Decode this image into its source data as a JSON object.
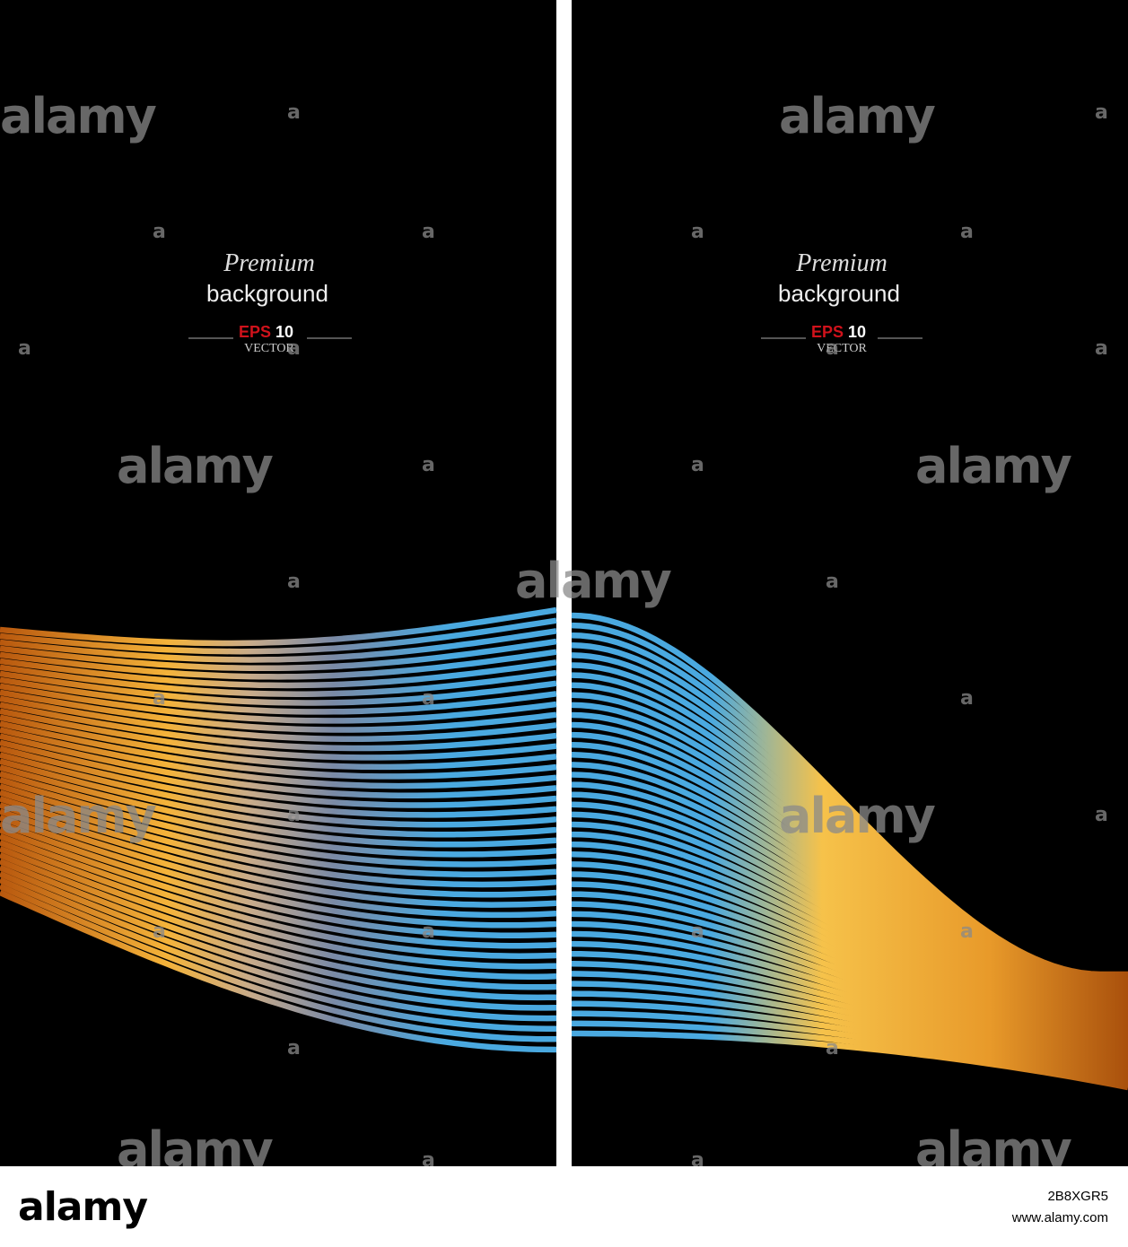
{
  "panels": [
    {
      "premium": "Premium",
      "background": "background",
      "eps": "EPS",
      "ten": "10",
      "vector": "VECTOR"
    },
    {
      "premium": "Premium",
      "background": "background",
      "eps": "EPS",
      "ten": "10",
      "vector": "VECTOR"
    }
  ],
  "watermark": "alamy",
  "watermark_small": "a",
  "footer": {
    "logo": "alamy",
    "image_id": "2B8XGR5",
    "url": "www.alamy.com"
  }
}
